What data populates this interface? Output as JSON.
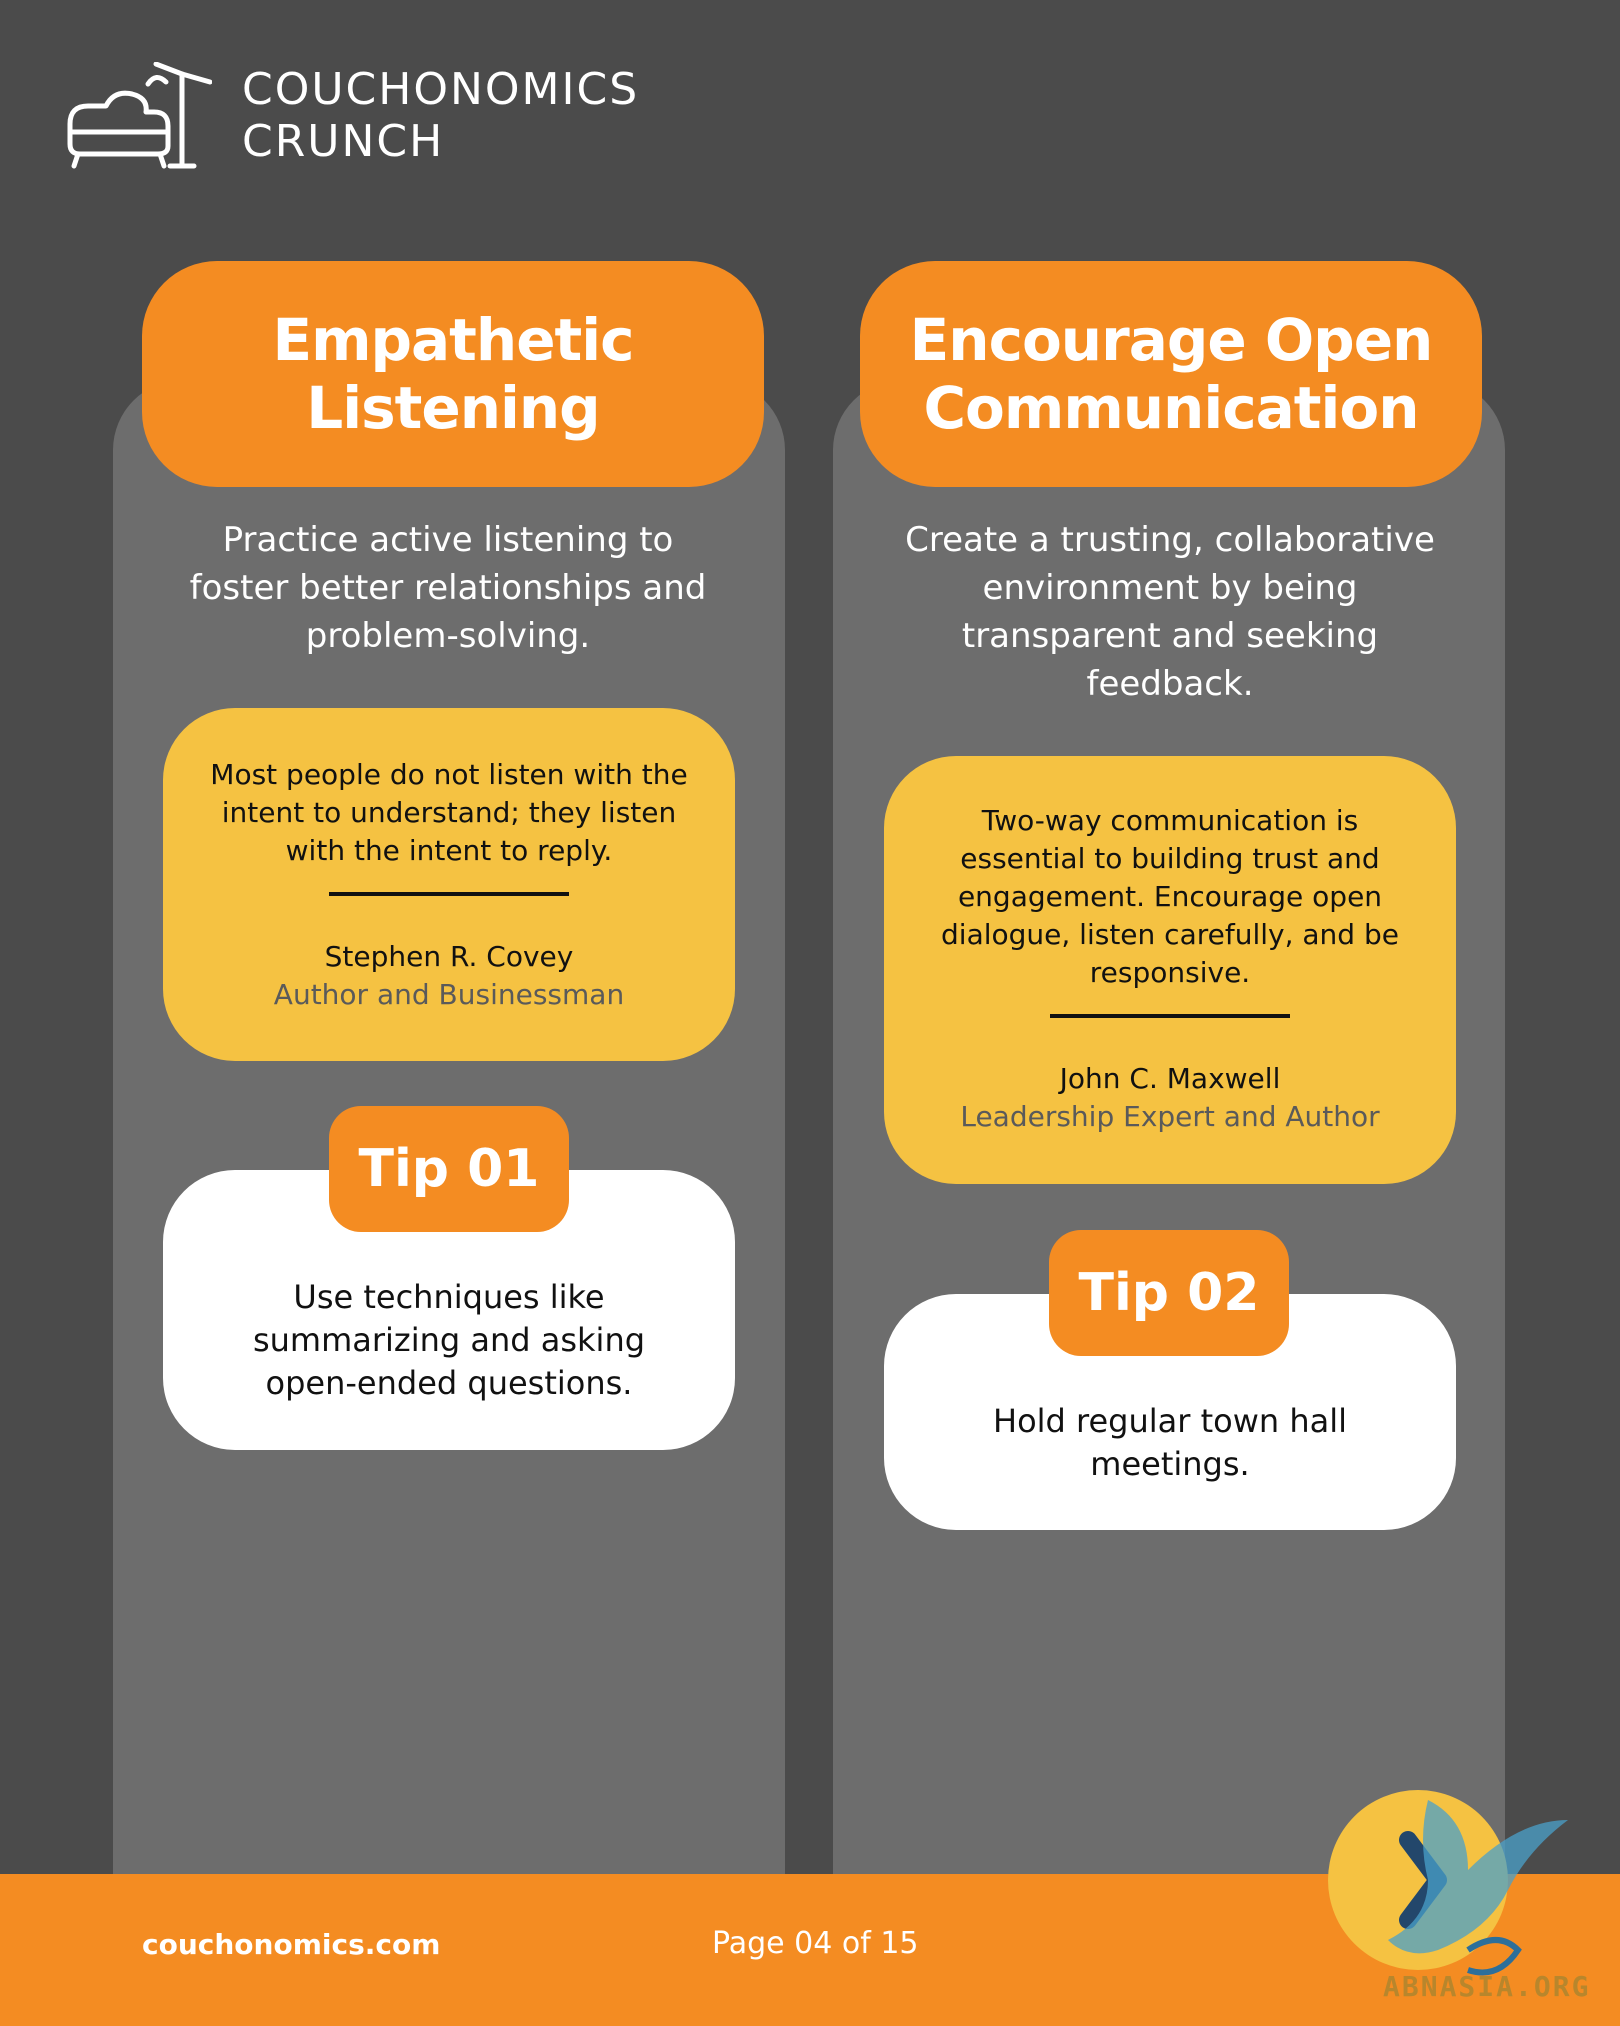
{
  "brand": {
    "line1": "COUCHONOMICS",
    "line2": "CRUNCH",
    "icon": "couch-lamp-icon"
  },
  "columns": [
    {
      "title": "Empathetic Listening",
      "description": "Practice active listening to foster better relationships and problem-solving.",
      "quote": {
        "text": "Most people do not listen with the intent to understand; they listen with the intent to reply.",
        "author": "Stephen R. Covey",
        "role": "Author and Businessman"
      },
      "tip": {
        "label": "Tip 01",
        "text": "Use techniques like summarizing and asking open-ended questions."
      }
    },
    {
      "title": "Encourage Open Communication",
      "description": "Create a trusting, collaborative environment by being transparent and seeking feedback.",
      "quote": {
        "text": "Two-way communication is essential to building trust and engagement. Encourage open dialogue, listen carefully, and be responsive.",
        "author": "John C. Maxwell",
        "role": "Leadership Expert and Author"
      },
      "tip": {
        "label": "Tip 02",
        "text": "Hold regular town hall meetings."
      }
    }
  ],
  "footer": {
    "website": "couchonomics.com",
    "page": "Page 04 of 15"
  },
  "watermark": {
    "text": "ABNASIA.ORG"
  },
  "colors": {
    "background": "#4b4b4b",
    "column": "#6d6d6d",
    "orange": "#f48c22",
    "yellow": "#f5c242",
    "white": "#ffffff"
  }
}
